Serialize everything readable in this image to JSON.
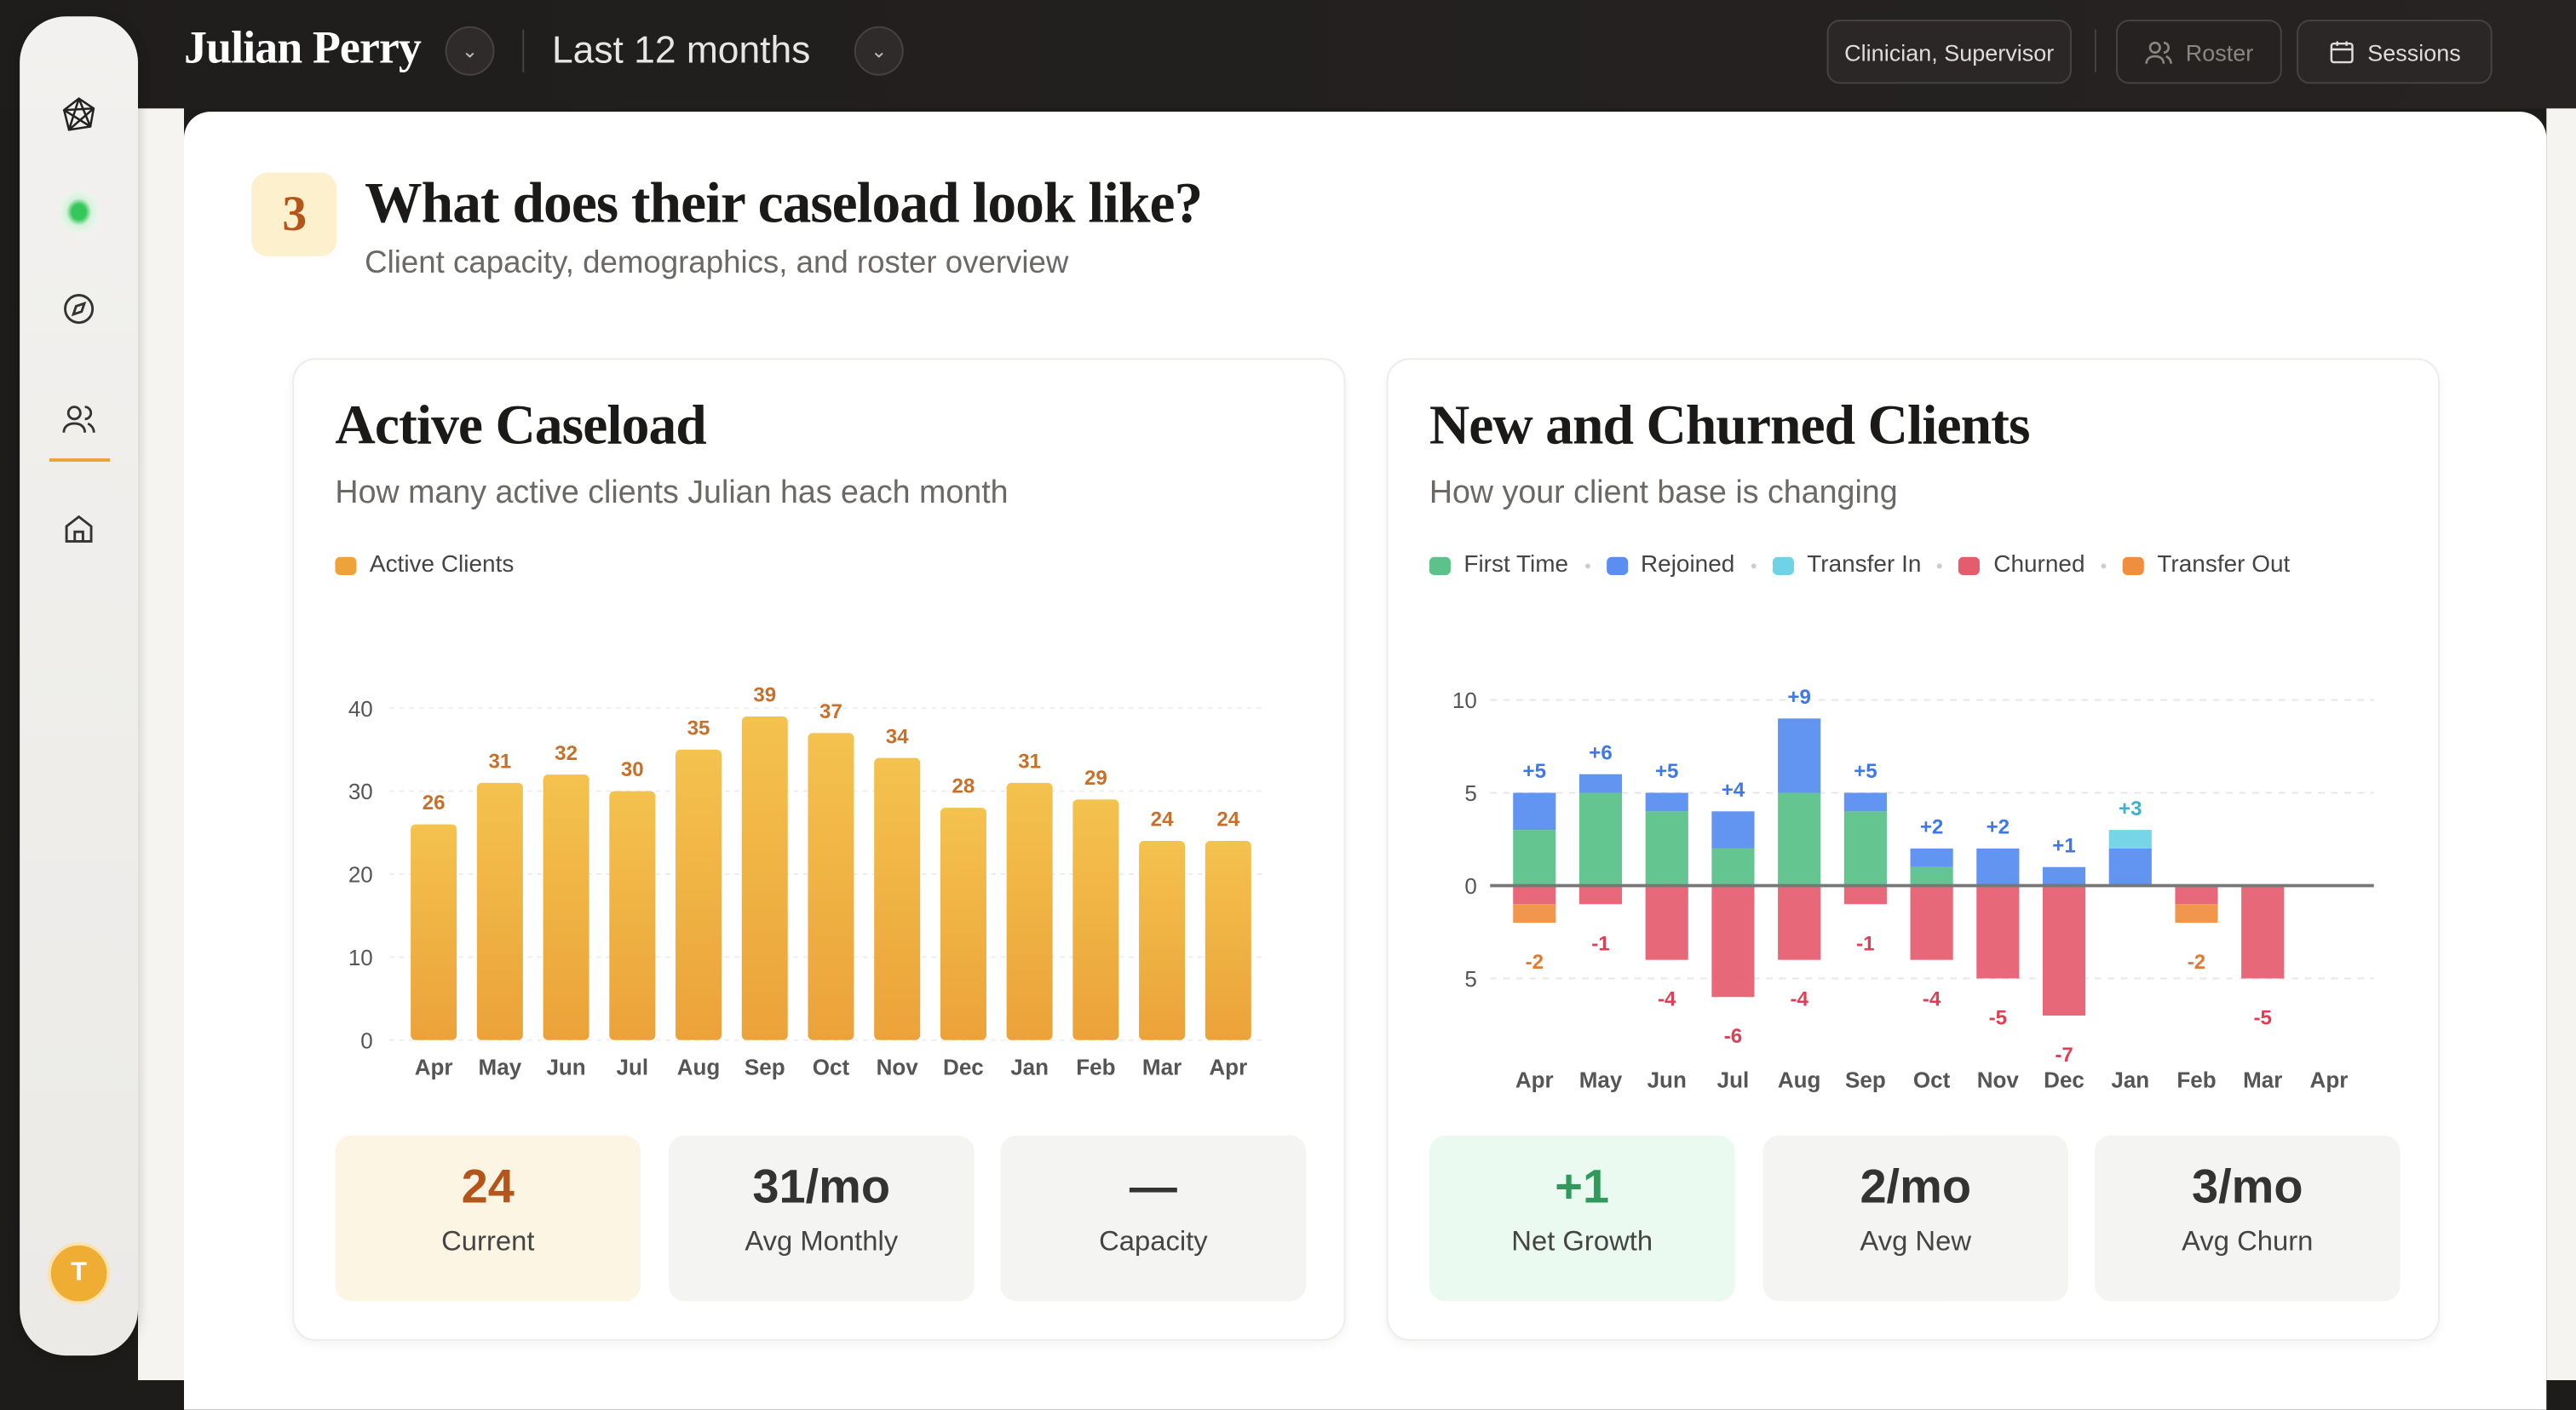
{
  "topbar": {
    "user_name": "Julian Perry",
    "period": "Last 12 months",
    "role": "Clinician, Supervisor",
    "roster": "Roster",
    "sessions": "Sessions"
  },
  "sidebar": {
    "avatar_initial": "T",
    "items": [
      "logo",
      "status",
      "explore",
      "clients",
      "home"
    ]
  },
  "section": {
    "number": "3",
    "title": "What does their caseload look like?",
    "subtitle": "Client capacity, demographics, and roster overview"
  },
  "caseload": {
    "title": "Active Caseload",
    "subtitle": "How many active clients Julian has each month",
    "legend": "Active Clients",
    "stats": [
      {
        "value": "24",
        "label": "Current"
      },
      {
        "value": "31/mo",
        "label": "Avg Monthly"
      },
      {
        "value": "—",
        "label": "Capacity"
      }
    ]
  },
  "churn": {
    "title": "New and Churned Clients",
    "subtitle": "How your client base is changing",
    "legend": [
      "First Time",
      "Rejoined",
      "Transfer In",
      "Churned",
      "Transfer Out"
    ],
    "stats": [
      {
        "value": "+1",
        "label": "Net Growth"
      },
      {
        "value": "2/mo",
        "label": "Avg New"
      },
      {
        "value": "3/mo",
        "label": "Avg Churn"
      }
    ]
  },
  "chart_data": [
    {
      "type": "bar",
      "title": "Active Caseload",
      "series": [
        {
          "name": "Active Clients",
          "values": [
            26,
            31,
            32,
            30,
            35,
            39,
            37,
            34,
            28,
            31,
            29,
            24,
            24
          ]
        }
      ],
      "categories": [
        "Apr",
        "May",
        "Jun",
        "Jul",
        "Aug",
        "Sep",
        "Oct",
        "Nov",
        "Dec",
        "Jan",
        "Feb",
        "Mar",
        "Apr"
      ],
      "yticks": [
        0,
        10,
        20,
        30,
        40
      ],
      "ylim": [
        0,
        42
      ],
      "color": "#f0b23d"
    },
    {
      "type": "bar",
      "title": "New and Churned Clients",
      "stacked": true,
      "categories": [
        "Apr",
        "May",
        "Jun",
        "Jul",
        "Aug",
        "Sep",
        "Oct",
        "Nov",
        "Dec",
        "Jan",
        "Feb",
        "Mar",
        "Apr"
      ],
      "series": [
        {
          "name": "First Time",
          "color": "#5cc28a",
          "values": [
            3,
            5,
            4,
            2,
            5,
            4,
            1,
            0,
            0,
            0,
            0,
            0,
            0
          ]
        },
        {
          "name": "Rejoined",
          "color": "#5a8ef0",
          "values": [
            2,
            1,
            1,
            2,
            4,
            1,
            1,
            2,
            1,
            2,
            0,
            0,
            0
          ]
        },
        {
          "name": "Transfer In",
          "color": "#6fd3e6",
          "values": [
            0,
            0,
            0,
            0,
            0,
            0,
            0,
            0,
            0,
            1,
            0,
            0,
            0
          ]
        },
        {
          "name": "Churned",
          "color": "#e55c6e",
          "values": [
            -1,
            -1,
            -4,
            -6,
            -4,
            -1,
            -4,
            -5,
            -7,
            0,
            -1,
            -5,
            0
          ]
        },
        {
          "name": "Transfer Out",
          "color": "#ef8e3e",
          "values": [
            -1,
            0,
            0,
            0,
            0,
            0,
            0,
            0,
            0,
            0,
            -1,
            0,
            0
          ]
        }
      ],
      "pos_labels": [
        "+5",
        "+6",
        "+5",
        "+4",
        "+9",
        "+5",
        "+2",
        "+2",
        "+1",
        "+3",
        "",
        "",
        ""
      ],
      "neg_labels": [
        "-2",
        "-1",
        "-4",
        "-6",
        "-4",
        "-1",
        "-4",
        "-5",
        "-7",
        "",
        "-2",
        "-5",
        ""
      ],
      "yticks": [
        {
          "v": 10,
          "label": "10"
        },
        {
          "v": 5,
          "label": "5"
        },
        {
          "v": 0,
          "label": "0"
        },
        {
          "v": -5,
          "label": "5"
        }
      ],
      "ylim": [
        -7.5,
        10
      ]
    }
  ]
}
